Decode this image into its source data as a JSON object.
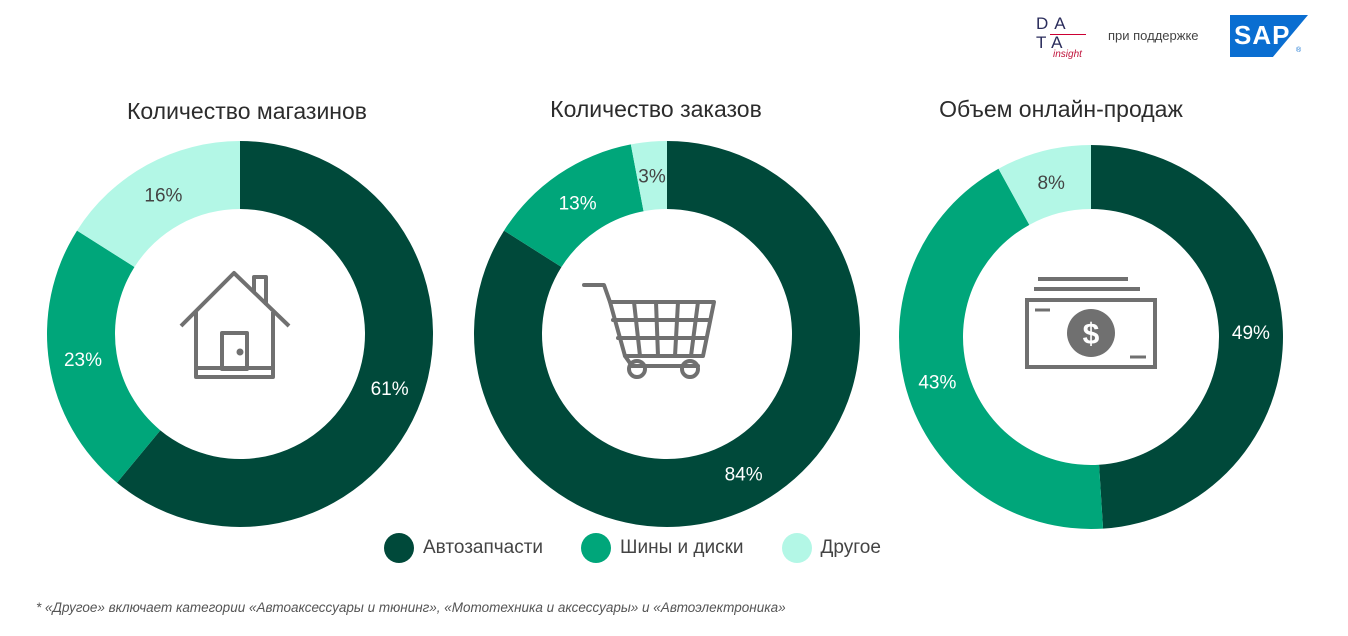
{
  "header": {
    "logo_data_line1": "DA",
    "logo_data_line2": "TA",
    "logo_insight": "insight",
    "support_text": "при поддержке",
    "sap_logo": "SAP",
    "sap_reg": "®"
  },
  "colors": {
    "auto_parts": "#00493a",
    "tires": "#00a67a",
    "other": "#b3f7e6",
    "icon_gray": "#707070"
  },
  "chart_data": [
    {
      "type": "pie",
      "title": "Количество магазинов",
      "icon": "house-icon",
      "categories": [
        "Автозапчасти",
        "Шины и диски",
        "Другое"
      ],
      "values": [
        61,
        23,
        16
      ],
      "labels": [
        "61%",
        "23%",
        "16%"
      ]
    },
    {
      "type": "pie",
      "title": "Количество заказов",
      "icon": "shopping-cart-icon",
      "categories": [
        "Автозапчасти",
        "Шины и диски",
        "Другое"
      ],
      "values": [
        84,
        13,
        3
      ],
      "labels": [
        "84%",
        "13%",
        "3%"
      ]
    },
    {
      "type": "pie",
      "title": "Объем онлайн-продаж",
      "icon": "money-icon",
      "categories": [
        "Автозапчасти",
        "Шины и диски",
        "Другое"
      ],
      "values": [
        49,
        43,
        8
      ],
      "labels": [
        "49%",
        "43%",
        "8%"
      ]
    }
  ],
  "legend": {
    "items": [
      "Автозапчасти",
      "Шины и диски",
      "Другое"
    ],
    "placement": "bottom-center"
  },
  "footnote": "* «Другое» включает категории «Автоаксессуары и тюнинг», «Мототехника и аксессуары» и «Автоэлектроника»"
}
